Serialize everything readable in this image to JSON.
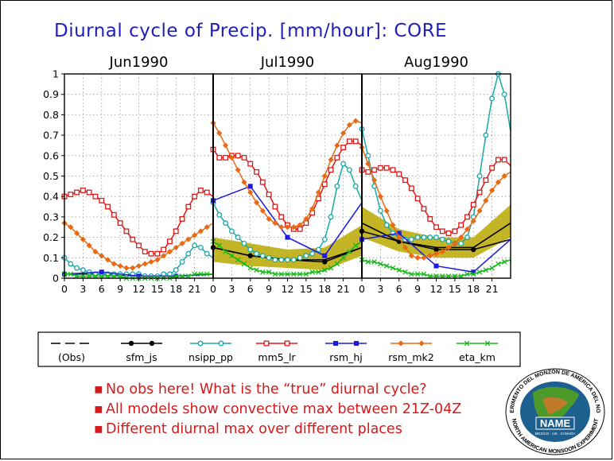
{
  "title": "Diurnal cycle of Precip. [mm/hour]: CORE",
  "chart_data": {
    "type": "line",
    "ylim": [
      0,
      1
    ],
    "yticks": [
      "0",
      "0.1",
      "0.2",
      "0.3",
      "0.4",
      "0.5",
      "0.6",
      "0.7",
      "0.8",
      "0.9",
      "1"
    ],
    "xticks": [
      "0",
      "3",
      "6",
      "9",
      "12",
      "15",
      "18",
      "21"
    ],
    "xlabel": "",
    "ylabel": "",
    "obs_band_color": "#b8a800",
    "panels": [
      {
        "title": "Jun1990",
        "obs": null,
        "series": [
          {
            "key": "sfm_js",
            "x": [
              0,
              6,
              12,
              18,
              24
            ],
            "y": [
              0.02,
              0.02,
              0.01,
              0.01,
              0.02
            ]
          },
          {
            "key": "nsipp_pp",
            "x": [
              0,
              1,
              2,
              3,
              4,
              5,
              6,
              7,
              8,
              9,
              10,
              11,
              12,
              13,
              14,
              15,
              16,
              17,
              18,
              19,
              20,
              21,
              22,
              23,
              24
            ],
            "y": [
              0.1,
              0.07,
              0.05,
              0.04,
              0.03,
              0.02,
              0.02,
              0.02,
              0.02,
              0.02,
              0.02,
              0.02,
              0.02,
              0.01,
              0.01,
              0.01,
              0.02,
              0.02,
              0.04,
              0.08,
              0.12,
              0.16,
              0.15,
              0.12,
              0.1
            ]
          },
          {
            "key": "mm5_lr",
            "x": [
              0,
              1,
              2,
              3,
              4,
              5,
              6,
              7,
              8,
              9,
              10,
              11,
              12,
              13,
              14,
              15,
              16,
              17,
              18,
              19,
              20,
              21,
              22,
              23,
              24
            ],
            "y": [
              0.4,
              0.41,
              0.42,
              0.43,
              0.42,
              0.4,
              0.38,
              0.35,
              0.31,
              0.27,
              0.23,
              0.19,
              0.16,
              0.13,
              0.12,
              0.12,
              0.14,
              0.18,
              0.23,
              0.29,
              0.35,
              0.4,
              0.43,
              0.42,
              0.4
            ]
          },
          {
            "key": "rsm_hj",
            "x": [
              0,
              6,
              12,
              18,
              24
            ],
            "y": [
              0.02,
              0.03,
              0.01,
              0.01,
              0.02
            ]
          },
          {
            "key": "rsm_mk2",
            "x": [
              0,
              1,
              2,
              3,
              4,
              5,
              6,
              7,
              8,
              9,
              10,
              11,
              12,
              13,
              14,
              15,
              16,
              17,
              18,
              19,
              20,
              21,
              22,
              23,
              24
            ],
            "y": [
              0.27,
              0.25,
              0.22,
              0.19,
              0.16,
              0.13,
              0.11,
              0.09,
              0.07,
              0.06,
              0.05,
              0.05,
              0.06,
              0.07,
              0.08,
              0.09,
              0.11,
              0.13,
              0.15,
              0.17,
              0.19,
              0.21,
              0.23,
              0.25,
              0.27
            ]
          },
          {
            "key": "eta_km",
            "x": [
              0,
              1,
              2,
              3,
              4,
              5,
              6,
              7,
              8,
              9,
              10,
              11,
              12,
              13,
              14,
              15,
              16,
              17,
              18,
              19,
              20,
              21,
              22,
              23,
              24
            ],
            "y": [
              0.02,
              0.02,
              0.01,
              0.01,
              0.01,
              0.01,
              0.01,
              0.01,
              0.01,
              0.01,
              0.0,
              0.0,
              0.0,
              0.0,
              0.0,
              0.0,
              0.0,
              0.0,
              0.01,
              0.01,
              0.01,
              0.02,
              0.02,
              0.02,
              0.02
            ]
          }
        ]
      },
      {
        "title": "Jul1990",
        "obs": {
          "x": [
            0,
            6,
            12,
            18,
            24
          ],
          "y": [
            0.15,
            0.11,
            0.09,
            0.09,
            0.15
          ],
          "low": [
            0.08,
            0.06,
            0.05,
            0.04,
            0.11
          ],
          "high": [
            0.2,
            0.17,
            0.14,
            0.15,
            0.26
          ]
        },
        "series": [
          {
            "key": "sfm_js",
            "x": [
              0,
              6,
              12,
              18,
              24
            ],
            "y": [
              0.15,
              0.11,
              0.09,
              0.08,
              0.15
            ]
          },
          {
            "key": "nsipp_pp",
            "x": [
              0,
              1,
              2,
              3,
              4,
              5,
              6,
              7,
              8,
              9,
              10,
              11,
              12,
              13,
              14,
              15,
              16,
              17,
              18,
              19,
              20,
              21,
              22,
              23,
              24
            ],
            "y": [
              0.37,
              0.31,
              0.27,
              0.23,
              0.2,
              0.17,
              0.14,
              0.12,
              0.11,
              0.1,
              0.09,
              0.09,
              0.09,
              0.09,
              0.1,
              0.11,
              0.12,
              0.14,
              0.19,
              0.3,
              0.45,
              0.56,
              0.53,
              0.45,
              0.38
            ]
          },
          {
            "key": "mm5_lr",
            "x": [
              0,
              1,
              2,
              3,
              4,
              5,
              6,
              7,
              8,
              9,
              10,
              11,
              12,
              13,
              14,
              15,
              16,
              17,
              18,
              19,
              20,
              21,
              22,
              23,
              24
            ],
            "y": [
              0.63,
              0.59,
              0.59,
              0.6,
              0.6,
              0.59,
              0.56,
              0.52,
              0.47,
              0.41,
              0.35,
              0.3,
              0.26,
              0.24,
              0.24,
              0.27,
              0.32,
              0.39,
              0.46,
              0.53,
              0.59,
              0.64,
              0.67,
              0.67,
              0.65
            ]
          },
          {
            "key": "rsm_hj",
            "x": [
              0,
              6,
              12,
              18,
              24
            ],
            "y": [
              0.38,
              0.45,
              0.2,
              0.11,
              0.37
            ]
          },
          {
            "key": "rsm_mk2",
            "x": [
              0,
              1,
              2,
              3,
              4,
              5,
              6,
              7,
              8,
              9,
              10,
              11,
              12,
              13,
              14,
              15,
              16,
              17,
              18,
              19,
              20,
              21,
              22,
              23,
              24
            ],
            "y": [
              0.76,
              0.71,
              0.65,
              0.59,
              0.53,
              0.47,
              0.42,
              0.37,
              0.33,
              0.29,
              0.27,
              0.25,
              0.25,
              0.25,
              0.26,
              0.29,
              0.34,
              0.42,
              0.5,
              0.58,
              0.65,
              0.71,
              0.75,
              0.77,
              0.76
            ]
          },
          {
            "key": "eta_km",
            "x": [
              0,
              1,
              2,
              3,
              4,
              5,
              6,
              7,
              8,
              9,
              10,
              11,
              12,
              13,
              14,
              15,
              16,
              17,
              18,
              19,
              20,
              21,
              22,
              23,
              24
            ],
            "y": [
              0.18,
              0.16,
              0.13,
              0.11,
              0.09,
              0.07,
              0.05,
              0.04,
              0.03,
              0.03,
              0.02,
              0.02,
              0.02,
              0.02,
              0.02,
              0.02,
              0.03,
              0.03,
              0.04,
              0.05,
              0.07,
              0.1,
              0.13,
              0.16,
              0.18
            ]
          }
        ]
      },
      {
        "title": "Aug1990",
        "obs": {
          "x": [
            0,
            6,
            12,
            18,
            24
          ],
          "y": [
            0.27,
            0.18,
            0.15,
            0.15,
            0.27
          ],
          "low": [
            0.2,
            0.13,
            0.1,
            0.1,
            0.2
          ],
          "high": [
            0.35,
            0.24,
            0.2,
            0.2,
            0.36
          ]
        },
        "series": [
          {
            "key": "sfm_js",
            "x": [
              0,
              6,
              12,
              18,
              24
            ],
            "y": [
              0.23,
              0.18,
              0.14,
              0.14,
              0.19
            ]
          },
          {
            "key": "nsipp_pp",
            "x": [
              0,
              1,
              2,
              3,
              4,
              5,
              6,
              7,
              8,
              9,
              10,
              11,
              12,
              13,
              14,
              15,
              16,
              17,
              18,
              19,
              20,
              21,
              22,
              23,
              24
            ],
            "y": [
              0.73,
              0.6,
              0.45,
              0.33,
              0.26,
              0.22,
              0.2,
              0.19,
              0.19,
              0.2,
              0.2,
              0.2,
              0.2,
              0.19,
              0.18,
              0.17,
              0.17,
              0.2,
              0.3,
              0.5,
              0.7,
              0.88,
              1.0,
              0.9,
              0.72
            ]
          },
          {
            "key": "mm5_lr",
            "x": [
              0,
              1,
              2,
              3,
              4,
              5,
              6,
              7,
              8,
              9,
              10,
              11,
              12,
              13,
              14,
              15,
              16,
              17,
              18,
              19,
              20,
              21,
              22,
              23,
              24
            ],
            "y": [
              0.53,
              0.52,
              0.53,
              0.54,
              0.54,
              0.53,
              0.51,
              0.48,
              0.44,
              0.39,
              0.34,
              0.29,
              0.25,
              0.23,
              0.22,
              0.23,
              0.26,
              0.3,
              0.36,
              0.42,
              0.48,
              0.54,
              0.58,
              0.58,
              0.55
            ]
          },
          {
            "key": "rsm_hj",
            "x": [
              0,
              6,
              12,
              18,
              24
            ],
            "y": [
              0.19,
              0.22,
              0.06,
              0.03,
              0.19
            ]
          },
          {
            "key": "rsm_mk2",
            "x": [
              0,
              1,
              2,
              3,
              4,
              5,
              6,
              7,
              8,
              9,
              10,
              11,
              12,
              13,
              14,
              15,
              16,
              17,
              18,
              19,
              20,
              21,
              22,
              23,
              24
            ],
            "y": [
              0.64,
              0.56,
              0.48,
              0.4,
              0.33,
              0.26,
              0.2,
              0.15,
              0.11,
              0.1,
              0.1,
              0.11,
              0.12,
              0.13,
              0.15,
              0.17,
              0.2,
              0.24,
              0.28,
              0.33,
              0.38,
              0.43,
              0.47,
              0.5,
              0.52
            ]
          },
          {
            "key": "eta_km",
            "x": [
              0,
              1,
              2,
              3,
              4,
              5,
              6,
              7,
              8,
              9,
              10,
              11,
              12,
              13,
              14,
              15,
              16,
              17,
              18,
              19,
              20,
              21,
              22,
              23,
              24
            ],
            "y": [
              0.09,
              0.08,
              0.08,
              0.07,
              0.06,
              0.05,
              0.04,
              0.03,
              0.02,
              0.02,
              0.02,
              0.01,
              0.01,
              0.01,
              0.01,
              0.01,
              0.01,
              0.02,
              0.02,
              0.03,
              0.04,
              0.05,
              0.07,
              0.08,
              0.09
            ]
          }
        ]
      }
    ],
    "legend": [
      {
        "key": "obs",
        "label": "(Obs)",
        "color": "#000000",
        "marker": "none",
        "dashed": true
      },
      {
        "key": "sfm_js",
        "label": "sfm_js",
        "color": "#000000",
        "marker": "dot"
      },
      {
        "key": "nsipp_pp",
        "label": "nsipp_pp",
        "color": "#1aa8a8",
        "marker": "circle"
      },
      {
        "key": "mm5_lr",
        "label": "mm5_lr",
        "color": "#e01818",
        "marker": "square"
      },
      {
        "key": "rsm_hj",
        "label": "rsm_hj",
        "color": "#1a1ae0",
        "marker": "filled-square"
      },
      {
        "key": "rsm_mk2",
        "label": "rsm_mk2",
        "color": "#e86a14",
        "marker": "diamond"
      },
      {
        "key": "eta_km",
        "label": "eta_km",
        "color": "#18b818",
        "marker": "cross"
      }
    ]
  },
  "bullets": [
    "No obs here! What is the “true” diurnal cycle?",
    "All models show convective max between 21Z-04Z",
    "Different diurnal max over different places"
  ],
  "logo": {
    "top_text": "EXPERIMENTO DEL MONZÓN DE AMÉRICA DEL NORTE",
    "bottom_text": "NORTH AMERICAN MONSOON EXPERIMENT",
    "name": "NAME",
    "sub": "MEXICO · US · CANADA"
  }
}
